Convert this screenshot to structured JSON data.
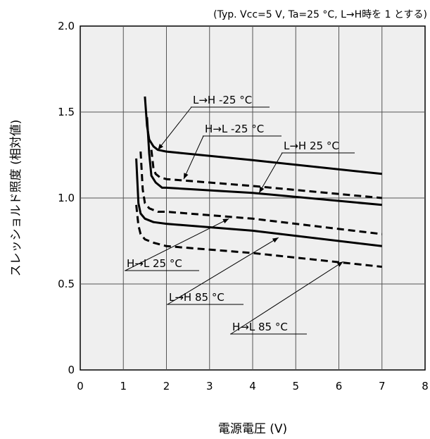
{
  "chart_data": {
    "type": "line",
    "condition_note": "(Typ. Vcc=5 V, Ta=25 °C, L→H時を 1 とする)",
    "xlabel": "電源電圧 (V)",
    "ylabel": "スレッショルド照度 (相対値)",
    "xlim": [
      0,
      8
    ],
    "ylim": [
      0,
      2.0
    ],
    "x_ticks": [
      0,
      1,
      2,
      3,
      4,
      5,
      6,
      7,
      8
    ],
    "x_tick_labels": [
      "0",
      "1",
      "2",
      "3",
      "4",
      "5",
      "6",
      "7",
      "8"
    ],
    "y_ticks": [
      0,
      0.5,
      1.0,
      1.5,
      2.0
    ],
    "y_tick_labels": [
      "0",
      "0.5",
      "1.0",
      "1.5",
      "2.0"
    ],
    "grid": true,
    "series": [
      {
        "name": "L→H -25 °C",
        "style": "solid",
        "x": [
          1.5,
          1.55,
          1.6,
          1.7,
          1.8,
          2.0,
          4.0,
          7.0
        ],
        "y": [
          1.59,
          1.42,
          1.34,
          1.3,
          1.28,
          1.27,
          1.22,
          1.14
        ]
      },
      {
        "name": "H→L -25 °C",
        "style": "dashed",
        "x": [
          1.65,
          1.7,
          1.75,
          1.85,
          2.0,
          4.0,
          7.0
        ],
        "y": [
          1.28,
          1.17,
          1.14,
          1.12,
          1.11,
          1.07,
          1.0
        ]
      },
      {
        "name": "L→H 25 °C",
        "style": "solid",
        "x": [
          1.55,
          1.6,
          1.65,
          1.75,
          1.9,
          2.0,
          4.0,
          7.0
        ],
        "y": [
          1.47,
          1.26,
          1.13,
          1.09,
          1.06,
          1.06,
          1.03,
          0.96
        ]
      },
      {
        "name": "H→L 25 °C",
        "style": "dashed",
        "x": [
          1.4,
          1.45,
          1.5,
          1.6,
          1.8,
          2.0,
          4.0,
          7.0
        ],
        "y": [
          1.27,
          1.05,
          0.97,
          0.94,
          0.92,
          0.92,
          0.88,
          0.79
        ]
      },
      {
        "name": "L→H 85 °C",
        "style": "solid",
        "x": [
          1.3,
          1.35,
          1.4,
          1.5,
          1.7,
          2.0,
          4.0,
          7.0
        ],
        "y": [
          1.23,
          0.97,
          0.91,
          0.88,
          0.86,
          0.85,
          0.81,
          0.72
        ]
      },
      {
        "name": "H→L 85 °C",
        "style": "dashed",
        "x": [
          1.3,
          1.35,
          1.4,
          1.5,
          1.7,
          2.0,
          4.0,
          7.0
        ],
        "y": [
          0.96,
          0.84,
          0.79,
          0.76,
          0.74,
          0.72,
          0.68,
          0.6
        ]
      }
    ],
    "annotations": [
      {
        "text": "L→H -25 °C",
        "series": 0,
        "point": [
          1.8,
          1.28
        ]
      },
      {
        "text": "H→L -25 °C",
        "series": 1,
        "point": [
          2.4,
          1.11
        ]
      },
      {
        "text": "L→H 25 °C",
        "series": 2,
        "point": [
          4.15,
          1.03
        ]
      },
      {
        "text": "H→L 25 °C",
        "series": 3,
        "point": [
          3.45,
          0.88
        ]
      },
      {
        "text": "L→H 85 °C",
        "series": 4,
        "point": [
          4.6,
          0.77
        ]
      },
      {
        "text": "H→L 85 °C",
        "series": 5,
        "point": [
          6.1,
          0.63
        ]
      }
    ]
  }
}
